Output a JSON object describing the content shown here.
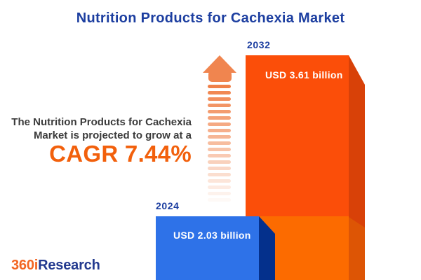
{
  "title": "Nutrition Products for Cachexia Market",
  "description": {
    "line1": "The Nutrition Products for Cachexia",
    "line2": "Market is projected to grow at a",
    "cagr_text": "CAGR 7.44%"
  },
  "chart_data": {
    "type": "bar",
    "title": "Nutrition Products for Cachexia Market",
    "orientation": "vertical",
    "categories": [
      "2024",
      "2032"
    ],
    "values": [
      2.03,
      3.61
    ],
    "unit": "USD billion",
    "value_labels": [
      "USD 2.03 billion",
      "USD 3.61 billion"
    ],
    "annotation": "CAGR 7.44%",
    "cagr_percent": 7.44,
    "legend": false,
    "grid": false,
    "bars": [
      {
        "year": "2024",
        "label": "USD 2.03 billion",
        "front_color": "#2E72E8",
        "side_color": "#04308C"
      },
      {
        "year": "2032",
        "label": "USD 3.61 billion",
        "front_color_upper": "#FB4E09",
        "front_color_lower": "#FC6B00",
        "side_color_upper": "#D84108",
        "side_color_lower": "#DD5505"
      }
    ]
  },
  "growth_arrow": {
    "icon": "up-arrow-icon",
    "head_color": "#F0854F",
    "stripe_color": "#F08149",
    "stripe_count": 19
  },
  "colors": {
    "title_navy": "#1C3EA0",
    "text_dark": "#3B3B3B",
    "accent_orange": "#F2600C",
    "background": "#FFFFFF"
  },
  "logo": {
    "part1": "360i",
    "part2": "Research"
  }
}
